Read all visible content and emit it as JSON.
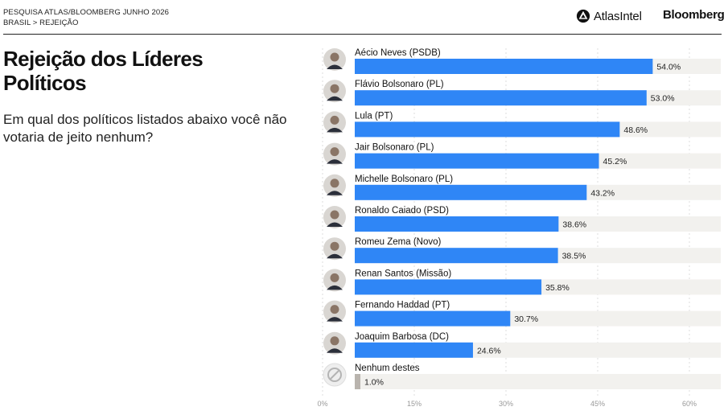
{
  "header": {
    "source_line": "PESQUISA ATLAS/BLOOMBERG JUNHO 2026",
    "breadcrumb": "BRASIL > REJEIÇÃO",
    "brand_atlas": "AtlasIntel",
    "brand_bloomberg": "Bloomberg"
  },
  "title": "Rejeição dos Líderes Políticos",
  "subtitle": "Em qual dos políticos listados abaixo você não votaria de jeito nenhum?",
  "colors": {
    "bar": "#2f86f6",
    "bar_none": "#b9b4ae",
    "track": "#f2f1ee",
    "grid": "#dcdcdc",
    "axis_text": "#999999"
  },
  "chart_data": {
    "type": "bar",
    "orientation": "horizontal",
    "categories": [
      "Aécio Neves (PSDB)",
      "Flávio Bolsonaro (PL)",
      "Lula (PT)",
      "Jair Bolsonaro (PL)",
      "Michelle Bolsonaro (PL)",
      "Ronaldo Caiado (PSD)",
      "Romeu Zema (Novo)",
      "Renan Santos (Missão)",
      "Fernando Haddad (PT)",
      "Joaquim Barbosa (DC)",
      "Nenhum destes"
    ],
    "values": [
      54.0,
      53.0,
      48.6,
      45.2,
      43.2,
      38.6,
      38.5,
      35.8,
      30.7,
      24.6,
      1.0
    ],
    "value_labels": [
      "54.0%",
      "53.0%",
      "48.6%",
      "45.2%",
      "43.2%",
      "38.6%",
      "38.5%",
      "35.8%",
      "30.7%",
      "24.6%",
      "1.0%"
    ],
    "x_ticks": [
      0,
      15,
      30,
      45,
      60
    ],
    "x_tick_labels": [
      "0%",
      "15%",
      "30%",
      "45%",
      "60%"
    ],
    "xlim": [
      0,
      60
    ],
    "avatar_icons": [
      "person-avatar-icon",
      "person-avatar-icon",
      "person-avatar-icon",
      "person-avatar-icon",
      "person-avatar-icon",
      "person-avatar-icon",
      "person-avatar-icon",
      "person-avatar-icon",
      "person-avatar-icon",
      "person-avatar-icon",
      "prohibited-icon"
    ],
    "grid": true,
    "legend": "none"
  }
}
